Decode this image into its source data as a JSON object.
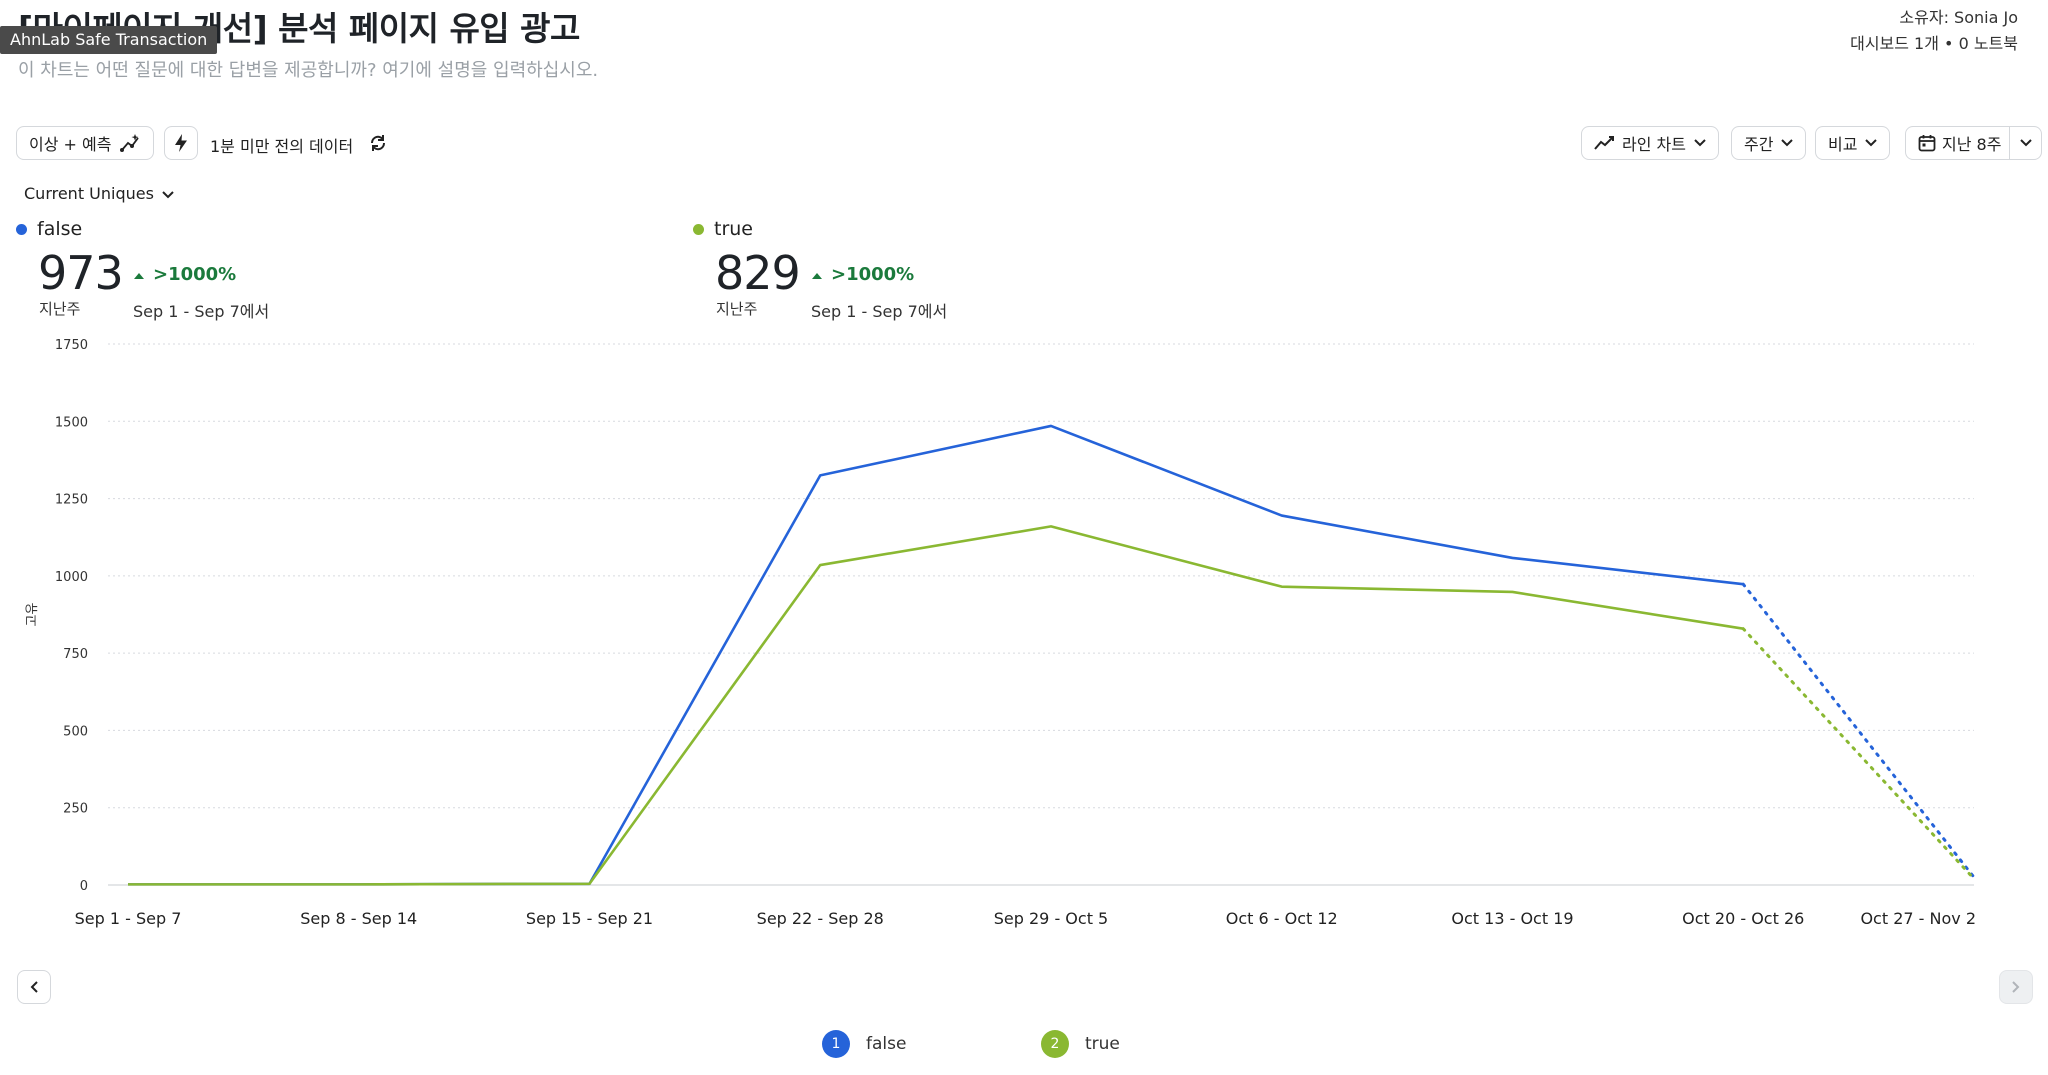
{
  "header": {
    "title": "[마이페이지 개선] 분석 페이지 유입 광고",
    "tooltip": "AhnLab Safe Transaction",
    "description": "이 차트는 어떤 질문에 대한 답변을 제공합니까? 여기에 설명을 입력하십시오.",
    "owner": "소유자: Sonia Jo",
    "meta": "대시보드 1개 • 0 노트북"
  },
  "toolbar": {
    "anomaly_label": "이상 + 예측",
    "freshness_label": "1분 미만 전의 데이터",
    "chart_type_label": "라인 차트",
    "interval_label": "주간",
    "compare_label": "비교",
    "range_label": "지난 8주"
  },
  "metric_selector": {
    "label": "Current Uniques"
  },
  "summary": [
    {
      "name": "false",
      "value": "973",
      "period": "지난주",
      "change": ">1000%",
      "compare": "Sep 1 - Sep 7에서",
      "color": "#2563d9"
    },
    {
      "name": "true",
      "value": "829",
      "period": "지난주",
      "change": ">1000%",
      "compare": "Sep 1 - Sep 7에서",
      "color": "#8ab832"
    }
  ],
  "chart_data": {
    "type": "line",
    "ylabel": "고유",
    "ylim": [
      0,
      1750
    ],
    "yticks": [
      0,
      250,
      500,
      750,
      1000,
      1250,
      1500,
      1750
    ],
    "categories": [
      "Sep 1 - Sep 7",
      "Sep 8 - Sep 14",
      "Sep 15 - Sep 21",
      "Sep 22 - Sep 28",
      "Sep 29 - Oct 5",
      "Oct 6 - Oct 12",
      "Oct 13 - Oct 19",
      "Oct 20 - Oct 26",
      "Oct 27 - Nov 2"
    ],
    "grid": true,
    "partial_last_period": true,
    "series": [
      {
        "name": "false",
        "color": "#2563d9",
        "values": [
          2,
          2,
          4,
          1325,
          1485,
          1195,
          1058,
          973,
          25
        ]
      },
      {
        "name": "true",
        "color": "#8ab832",
        "values": [
          2,
          2,
          4,
          1035,
          1160,
          965,
          948,
          829,
          20
        ]
      }
    ]
  },
  "legend": [
    {
      "index": "1",
      "name": "false",
      "color": "#2563d9"
    },
    {
      "index": "2",
      "name": "true",
      "color": "#8ab832"
    }
  ]
}
